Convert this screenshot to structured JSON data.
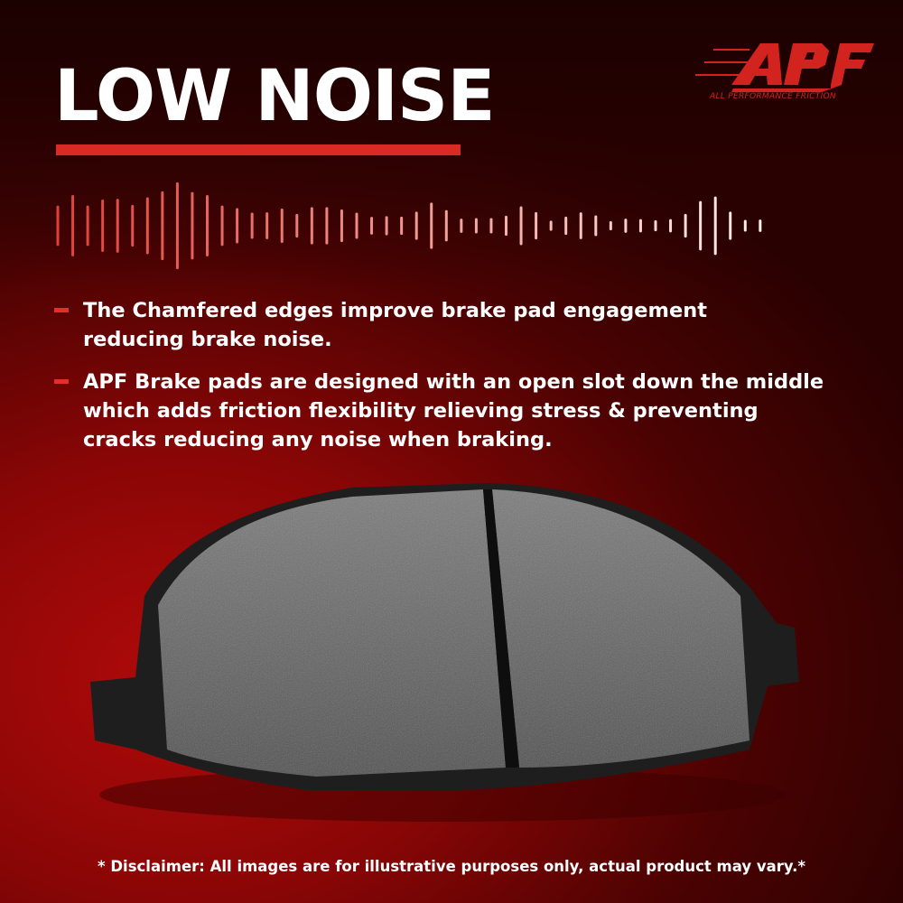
{
  "headline": "LOW NOISE",
  "brand": {
    "logo_text": "APF",
    "tagline": "ALL PERFORMANCE FRICTION",
    "color": "#d2231f"
  },
  "bullets": [
    {
      "text": "The Chamfered edges improve brake pad engagement\nreducing brake noise."
    },
    {
      "text": "APF Brake pads are designed with an open slot down the middle\nwhich adds friction flexibility relieving stress & preventing\n cracks reducing any noise when braking."
    }
  ],
  "disclaimer": "* Disclaimer: All images are for illustrative purposes only, actual product may vary.*",
  "colors": {
    "accent": "#d92a25",
    "background": "#8a0606"
  }
}
